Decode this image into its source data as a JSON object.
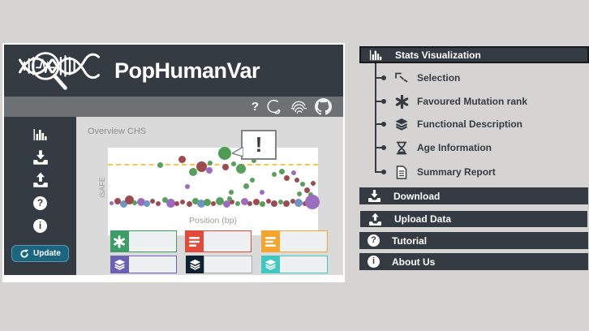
{
  "colors": {
    "page_bg": "#d5d4d3",
    "charcoal": "#343b42",
    "toolbar_gray": "#6e7173",
    "content_bg": "#dadada",
    "muted_text": "#8e8f90",
    "update_teal": "#1a6580",
    "threshold_yellow": "#f2c84f"
  },
  "app": {
    "title": "PopHumanVar",
    "logo_icon": "dna-magnifier",
    "toolbar": {
      "help_glyph": "?",
      "icons": [
        "help",
        "profile-head",
        "fingerprint",
        "github"
      ]
    },
    "sidebar": {
      "items": [
        "stats-visualization",
        "download",
        "upload",
        "help",
        "info"
      ],
      "help_glyph": "?",
      "info_glyph": "i",
      "update_button": {
        "label": "Update",
        "color": "#1a6580"
      }
    },
    "content": {
      "overview_label": "Overview CHS",
      "plot": {
        "ylabel": "iSAFE",
        "xlabel": "Position (bp)",
        "callout_glyph": "!",
        "threshold_color": "#f2c84f",
        "dot_colors": {
          "g": "#56a05b",
          "m": "#9c4b51",
          "p": "#9b6cc0",
          "b": "#6f95c5",
          "G": "#4f9b53"
        },
        "points": [
          [
            64,
            21,
            3.5,
            "g"
          ],
          [
            91,
            14,
            4.5,
            "m"
          ],
          [
            105,
            30,
            5,
            "g"
          ],
          [
            115,
            23,
            6.5,
            "m"
          ],
          [
            125,
            28,
            4,
            "p"
          ],
          [
            126,
            19,
            3,
            "g"
          ],
          [
            144,
            7,
            8,
            "G"
          ],
          [
            145,
            24,
            4,
            "m"
          ],
          [
            155,
            20,
            3,
            "g"
          ],
          [
            164,
            26,
            6,
            "g"
          ],
          [
            180,
            16,
            3,
            "g"
          ],
          [
            205,
            33,
            3,
            "g"
          ],
          [
            214,
            29,
            3.5,
            "g"
          ],
          [
            220,
            37,
            3.5,
            "m"
          ],
          [
            229,
            31,
            3,
            "p"
          ],
          [
            233,
            40,
            3,
            "m"
          ],
          [
            240,
            45,
            3,
            "g"
          ],
          [
            245,
            52,
            3.5,
            "m"
          ],
          [
            250,
            58,
            3,
            "g"
          ],
          [
            236,
            57,
            3,
            "g"
          ],
          [
            253,
            44,
            3,
            "m"
          ],
          [
            98,
            48,
            3,
            "p"
          ],
          [
            152,
            55,
            3,
            "g"
          ],
          [
            170,
            47,
            3.5,
            "g"
          ],
          [
            190,
            55,
            3,
            "p"
          ],
          [
            178,
            40,
            3,
            "g"
          ],
          [
            4,
            68,
            2.5,
            "p"
          ],
          [
            12,
            66,
            4,
            "m"
          ],
          [
            19,
            69,
            4.5,
            "b"
          ],
          [
            26,
            64,
            5.5,
            "m"
          ],
          [
            33,
            68,
            3,
            "g"
          ],
          [
            41,
            67,
            5,
            "p"
          ],
          [
            48,
            69,
            4,
            "b"
          ],
          [
            55,
            66,
            3,
            "m"
          ],
          [
            62,
            69,
            3,
            "m"
          ],
          [
            70,
            64,
            3.5,
            "g"
          ],
          [
            77,
            68,
            5.5,
            "p"
          ],
          [
            85,
            69,
            3,
            "m"
          ],
          [
            92,
            67,
            3,
            "m"
          ],
          [
            100,
            69,
            3.5,
            "m"
          ],
          [
            108,
            66,
            4,
            "g"
          ],
          [
            115,
            69,
            5,
            "b"
          ],
          [
            122,
            67,
            4.5,
            "g"
          ],
          [
            130,
            69,
            3,
            "m"
          ],
          [
            138,
            66,
            5,
            "g"
          ],
          [
            146,
            69,
            4.5,
            "p"
          ],
          [
            153,
            67,
            3,
            "m"
          ],
          [
            160,
            69,
            3,
            "g"
          ],
          [
            168,
            66,
            4.5,
            "p"
          ],
          [
            175,
            69,
            3,
            "m"
          ],
          [
            183,
            67,
            4,
            "m"
          ],
          [
            190,
            69,
            3.5,
            "g"
          ],
          [
            198,
            66,
            3,
            "m"
          ],
          [
            205,
            69,
            4,
            "m"
          ],
          [
            213,
            67,
            3,
            "g"
          ],
          [
            220,
            69,
            4,
            "m"
          ],
          [
            228,
            66,
            3,
            "m"
          ],
          [
            235,
            68,
            5,
            "b"
          ],
          [
            243,
            69,
            3,
            "m"
          ],
          [
            252,
            67,
            9,
            "p"
          ],
          [
            150,
            63,
            3,
            "g"
          ]
        ]
      },
      "filters": {
        "row1": [
          {
            "icon": "asterisk",
            "color": "#3e9c66",
            "value": ""
          },
          {
            "icon": "list",
            "color": "#e14b38",
            "value": ""
          },
          {
            "icon": "list",
            "color": "#f6a42d",
            "value": ""
          }
        ],
        "row2": [
          {
            "icon": "layers",
            "color": "#6a61b5",
            "value": ""
          },
          {
            "icon": "layers",
            "color": "#0d2231",
            "border": "#a9adb0",
            "value": ""
          },
          {
            "icon": "layers",
            "color": "#3fc7c2",
            "value": ""
          }
        ]
      }
    }
  },
  "menu": {
    "header": {
      "label": "Stats Visualization",
      "icon": "bar-chart"
    },
    "tree": [
      {
        "label": "Selection",
        "icon": "selection-chart"
      },
      {
        "label": "Favoured Mutation rank",
        "icon": "asterisk"
      },
      {
        "label": "Functional Description",
        "icon": "layers"
      },
      {
        "label": "Age Information",
        "icon": "hourglass"
      },
      {
        "label": "Summary Report",
        "icon": "report"
      }
    ],
    "bars": [
      {
        "label": "Download",
        "icon": "download"
      },
      {
        "label": "Upload Data",
        "icon": "upload"
      },
      {
        "label": "Tutorial",
        "icon": "help-circle",
        "glyph": "?"
      },
      {
        "label": "About Us",
        "icon": "info-circle",
        "glyph": "i"
      }
    ]
  }
}
